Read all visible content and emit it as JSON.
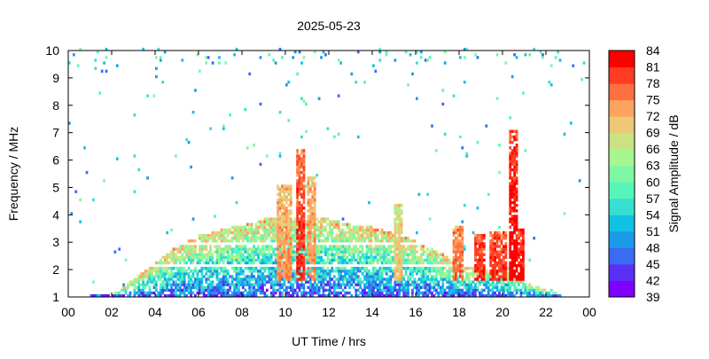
{
  "chart_data": {
    "type": "heatmap",
    "title": "2025-05-23",
    "xlabel": "UT Time / hrs",
    "ylabel": "Frequency / MHz",
    "xlim": [
      0,
      24
    ],
    "ylim": [
      1,
      10
    ],
    "xticks": [
      "00",
      "02",
      "04",
      "06",
      "08",
      "10",
      "12",
      "14",
      "16",
      "18",
      "20",
      "22",
      "00"
    ],
    "yticks": [
      "1",
      "2",
      "3",
      "4",
      "5",
      "6",
      "7",
      "8",
      "9",
      "10"
    ],
    "colorbar": {
      "label": "Signal Amplitude / dB",
      "ticks": [
        "84",
        "81",
        "78",
        "75",
        "72",
        "69",
        "66",
        "63",
        "60",
        "57",
        "54",
        "51",
        "48",
        "45",
        "42",
        "39"
      ],
      "range": [
        39,
        84
      ],
      "colors": [
        "#7f00ff",
        "#5a2ff5",
        "#3a6bf3",
        "#1c9aea",
        "#10c2e2",
        "#36e0d0",
        "#58f5bb",
        "#7ef7a5",
        "#a6f78f",
        "#cbe283",
        "#ecc877",
        "#fea35d",
        "#ff7040",
        "#ff3c22",
        "#ff0000"
      ]
    },
    "envelope": {
      "hours": [
        0,
        2,
        2.5,
        3,
        4,
        5,
        6,
        7,
        8,
        9,
        10,
        11,
        12,
        13,
        14,
        15,
        16,
        17,
        18,
        19,
        20,
        21,
        22,
        23,
        24
      ],
      "upper_freq_mhz": [
        1.0,
        1.1,
        1.3,
        1.6,
        2.2,
        2.8,
        3.2,
        3.4,
        3.6,
        3.8,
        3.9,
        3.9,
        3.8,
        3.6,
        3.5,
        3.3,
        3.0,
        2.6,
        2.2,
        2.0,
        2.0,
        1.5,
        1.2,
        1.0,
        1.0
      ]
    },
    "bursts": [
      {
        "start": 9.5,
        "end": 10.2,
        "fmax": 5.0,
        "amp": 75
      },
      {
        "start": 10.4,
        "end": 10.8,
        "fmax": 6.3,
        "amp": 81
      },
      {
        "start": 10.9,
        "end": 11.3,
        "fmax": 5.3,
        "amp": 75
      },
      {
        "start": 14.9,
        "end": 15.3,
        "fmax": 4.4,
        "amp": 72
      },
      {
        "start": 17.6,
        "end": 18.1,
        "fmax": 3.6,
        "amp": 78
      },
      {
        "start": 18.6,
        "end": 19.2,
        "fmax": 3.3,
        "amp": 81
      },
      {
        "start": 19.4,
        "end": 20.2,
        "fmax": 3.4,
        "amp": 81
      },
      {
        "start": 20.3,
        "end": 20.7,
        "fmax": 7.0,
        "amp": 84
      },
      {
        "start": 20.7,
        "end": 21.0,
        "fmax": 3.5,
        "amp": 84
      }
    ]
  }
}
